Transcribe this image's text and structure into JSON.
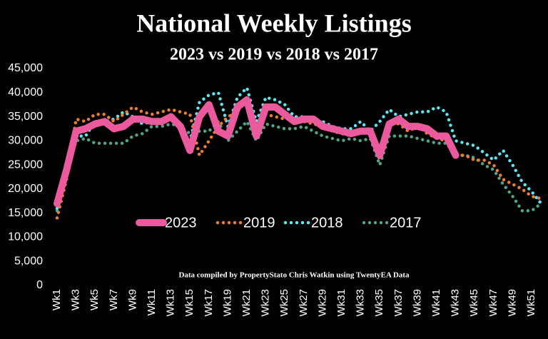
{
  "chart_data": {
    "type": "line",
    "title": "National Weekly Listings",
    "subtitle": "2023 vs 2019 vs 2018 vs 2017",
    "annotation": "Data compiled by PropertyStato Chris Watkin using TwentyEA Data",
    "categories": [
      "Wk1",
      null,
      "Wk3",
      null,
      "Wk5",
      null,
      "Wk7",
      null,
      "Wk9",
      null,
      "Wk11",
      null,
      "Wk13",
      null,
      "Wk15",
      null,
      "Wk17",
      null,
      "Wk19",
      null,
      "Wk21",
      null,
      "Wk23",
      null,
      "Wk25",
      null,
      "Wk27",
      null,
      "Wk29",
      null,
      "Wk31",
      null,
      "Wk33",
      null,
      "Wk35",
      null,
      "Wk37",
      null,
      "Wk39",
      null,
      "Wk41",
      null,
      "Wk43",
      null,
      "Wk45",
      null,
      "Wk47",
      null,
      "Wk49",
      null,
      "Wk51",
      null
    ],
    "series": [
      {
        "name": "2023",
        "color": "#ec5a9e",
        "style": "solid",
        "values": [
          17000,
          24000,
          32000,
          32500,
          33500,
          34000,
          32500,
          33000,
          34500,
          34500,
          34000,
          34000,
          35000,
          33000,
          28000,
          35000,
          37500,
          32000,
          31000,
          37000,
          38500,
          31000,
          37000,
          37000,
          35500,
          34000,
          34500,
          34500,
          33000,
          32500,
          32000,
          31500,
          32000,
          32000,
          27000,
          33500,
          34500,
          33000,
          33000,
          32500,
          31000,
          31000,
          27000,
          null,
          null,
          null,
          null,
          null,
          null,
          null,
          null,
          null
        ]
      },
      {
        "name": "2019",
        "color": "#ed7d31",
        "style": "dotted",
        "values": [
          14000,
          22000,
          34500,
          34000,
          35500,
          35500,
          34000,
          35500,
          37000,
          36000,
          35500,
          36000,
          36500,
          36000,
          35500,
          27000,
          30000,
          33000,
          35000,
          36000,
          39000,
          32000,
          35500,
          35000,
          34500,
          34500,
          34000,
          33500,
          33000,
          32000,
          31500,
          31000,
          32000,
          32000,
          26000,
          34000,
          33500,
          32000,
          33000,
          31500,
          30500,
          30000,
          27000,
          27000,
          26000,
          26000,
          25000,
          22000,
          21000,
          20000,
          18500,
          18000
        ]
      },
      {
        "name": "2018",
        "color": "#5ee6ee",
        "style": "dotted",
        "values": [
          16000,
          25000,
          31000,
          31000,
          34000,
          34000,
          34500,
          36000,
          35000,
          33500,
          34000,
          33500,
          35000,
          32500,
          30000,
          38000,
          39500,
          40000,
          33000,
          39000,
          41000,
          34000,
          39000,
          38500,
          37500,
          35000,
          35000,
          34000,
          34000,
          33000,
          32500,
          32500,
          34000,
          32000,
          34000,
          36500,
          35000,
          35500,
          36000,
          36000,
          37000,
          36000,
          30000,
          29500,
          29000,
          27500,
          26000,
          28000,
          25000,
          21500,
          19500,
          17000
        ]
      },
      {
        "name": "2017",
        "color": "#4fa585",
        "style": "dotted",
        "values": [
          15500,
          23000,
          30000,
          30500,
          29500,
          29500,
          29500,
          29500,
          31000,
          31500,
          33000,
          33000,
          33500,
          33000,
          31500,
          32000,
          32000,
          34000,
          30000,
          32000,
          34000,
          30000,
          33500,
          33000,
          32500,
          32500,
          33000,
          32000,
          31000,
          30500,
          30000,
          30500,
          30000,
          30500,
          25000,
          31000,
          31000,
          31000,
          30500,
          30000,
          29500,
          29500,
          27000,
          27000,
          26500,
          25000,
          24000,
          21000,
          18500,
          15500,
          15500,
          17000
        ]
      }
    ],
    "ylim": [
      0,
      45000
    ],
    "yticks": [
      0,
      {
        "value": 5000,
        "label": "5,000"
      },
      {
        "value": 10000,
        "label": "10,000"
      },
      {
        "value": 15000,
        "label": "15,000"
      },
      {
        "value": 20000,
        "label": "20,000"
      },
      {
        "value": 25000,
        "label": "25,000"
      },
      {
        "value": 30000,
        "label": "30,000"
      },
      {
        "value": 35000,
        "label": "35,000"
      },
      {
        "value": 40000,
        "label": "40,000"
      },
      {
        "value": 45000,
        "label": "45,000"
      }
    ],
    "grid": false,
    "legend": "center"
  }
}
